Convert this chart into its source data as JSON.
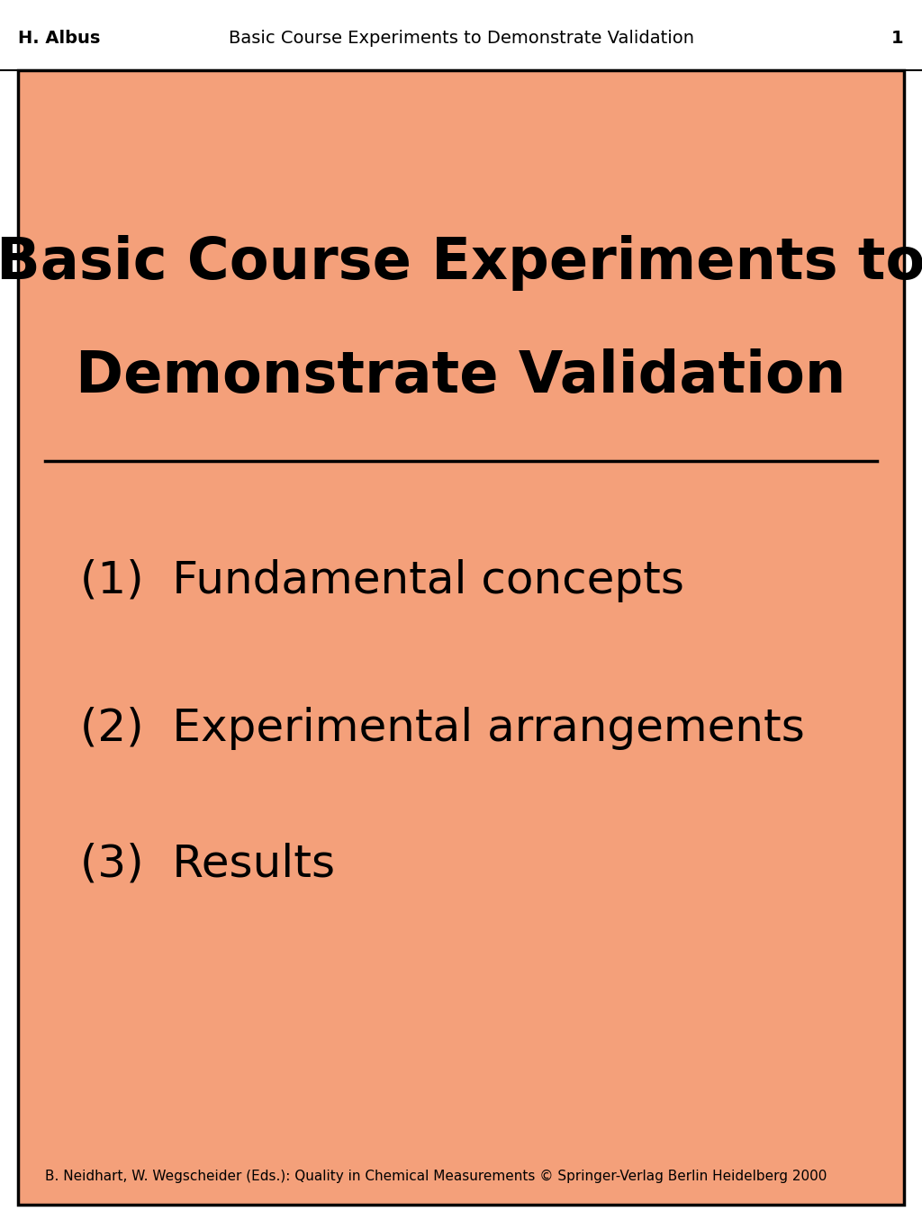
{
  "header_author": "H. Albus",
  "header_title": "Basic Course Experiments to Demonstrate Validation",
  "header_page": "1",
  "slide_title_line1": "Basic Course Experiments to",
  "slide_title_line2": "Demonstrate Validation",
  "items": [
    "(1)  Fundamental concepts",
    "(2)  Experimental arrangements",
    "(3)  Results"
  ],
  "footer": "B. Neidhart, W. Wegscheider (Eds.): Quality in Chemical Measurements © Springer-Verlag Berlin Heidelberg 2000",
  "bg_color": "#F4A07A",
  "slide_bg": "#F4A07A",
  "header_bg": "#FFFFFF",
  "text_color": "#000000",
  "border_color": "#000000",
  "title_fontsize": 46,
  "header_fontsize": 14,
  "item_fontsize": 36,
  "footer_fontsize": 11
}
